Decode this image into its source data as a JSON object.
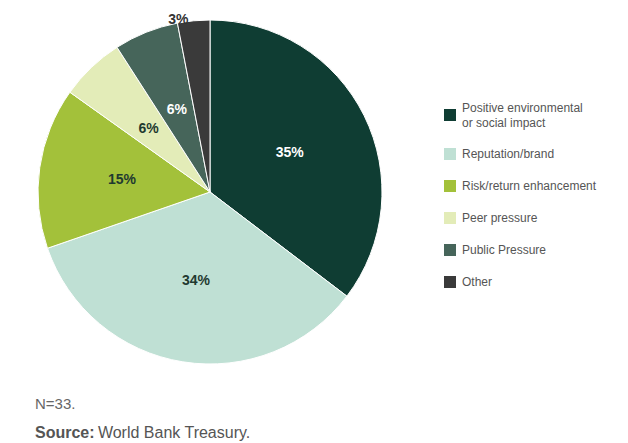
{
  "chart_data": {
    "type": "pie",
    "categories": [
      "Positive environmental\nor social impact",
      "Reputation/brand",
      "Risk/return enhancement",
      "Peer pressure",
      "Public Pressure",
      "Other"
    ],
    "values": [
      35,
      34,
      15,
      6,
      6,
      3
    ],
    "value_labels": [
      "35%",
      "34%",
      "15%",
      "6%",
      "6%",
      "3%"
    ],
    "colors": [
      "#0f3d33",
      "#bfe0d4",
      "#a3c13a",
      "#e3ecb8",
      "#46655a",
      "#3a3a3a"
    ],
    "data_labels": true,
    "legend": "right",
    "annotations": [
      "N=33."
    ],
    "source": {
      "label": "Source:",
      "text": "World Bank Treasury."
    }
  }
}
